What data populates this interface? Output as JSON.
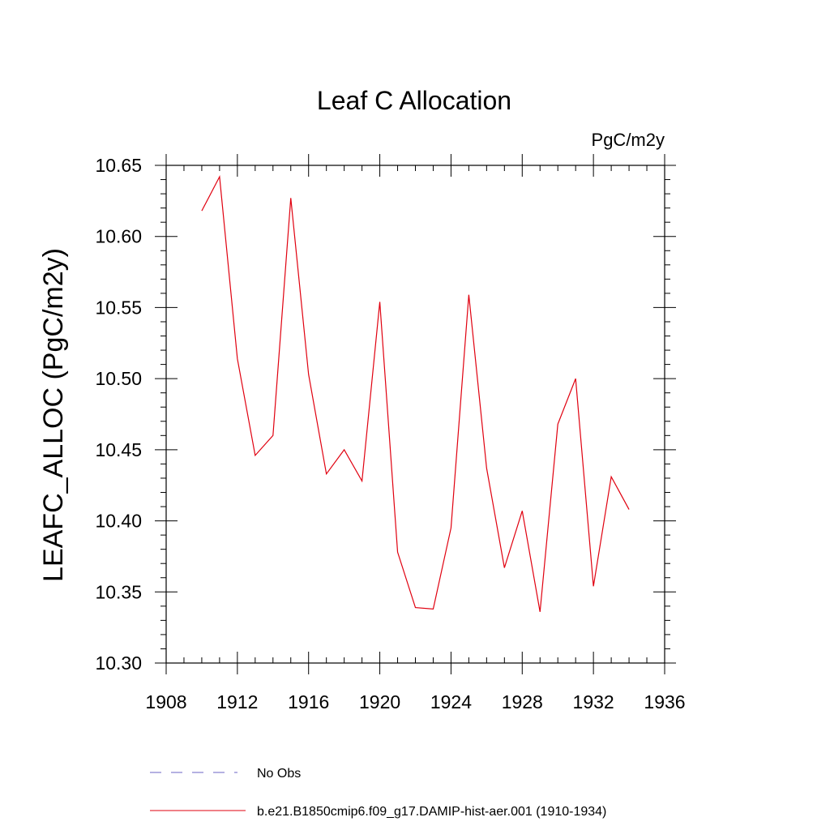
{
  "chart_data": {
    "type": "line",
    "title": "Leaf C Allocation",
    "units_label": "PgC/m2y",
    "ylabel": "LEAFC_ALLOC  (PgC/m2y)",
    "xlabel": "",
    "xlim": [
      1908,
      1936
    ],
    "ylim": [
      10.3,
      10.65
    ],
    "x_ticks": [
      1908,
      1912,
      1916,
      1920,
      1924,
      1928,
      1932,
      1936
    ],
    "x_tick_labels": [
      "1908",
      "1912",
      "1916",
      "1920",
      "1924",
      "1928",
      "1932",
      "1936"
    ],
    "y_ticks": [
      10.3,
      10.35,
      10.4,
      10.45,
      10.5,
      10.55,
      10.6,
      10.65
    ],
    "y_tick_labels": [
      "10.30",
      "10.35",
      "10.40",
      "10.45",
      "10.50",
      "10.55",
      "10.60",
      "10.65"
    ],
    "grid": false,
    "legend_position": "bottom",
    "series": [
      {
        "name": "b.e21.B1850cmip6.f09_g17.DAMIP-hist-aer.001 (1910-1934)",
        "color": "#e0000f",
        "style": "solid",
        "x": [
          1910,
          1911,
          1912,
          1913,
          1914,
          1915,
          1916,
          1917,
          1918,
          1919,
          1920,
          1921,
          1922,
          1923,
          1924,
          1925,
          1926,
          1927,
          1928,
          1929,
          1930,
          1931,
          1932,
          1933,
          1934
        ],
        "y": [
          10.618,
          10.642,
          10.514,
          10.446,
          10.46,
          10.627,
          10.503,
          10.433,
          10.45,
          10.428,
          10.554,
          10.378,
          10.339,
          10.338,
          10.395,
          10.559,
          10.437,
          10.367,
          10.407,
          10.336,
          10.468,
          10.5,
          10.354,
          10.431,
          10.408
        ]
      }
    ],
    "legend": [
      {
        "label": "No Obs",
        "color": "#6b63c4",
        "style": "dashed"
      },
      {
        "label": "b.e21.B1850cmip6.f09_g17.DAMIP-hist-aer.001 (1910-1934)",
        "color": "#e0000f",
        "style": "solid"
      }
    ]
  }
}
